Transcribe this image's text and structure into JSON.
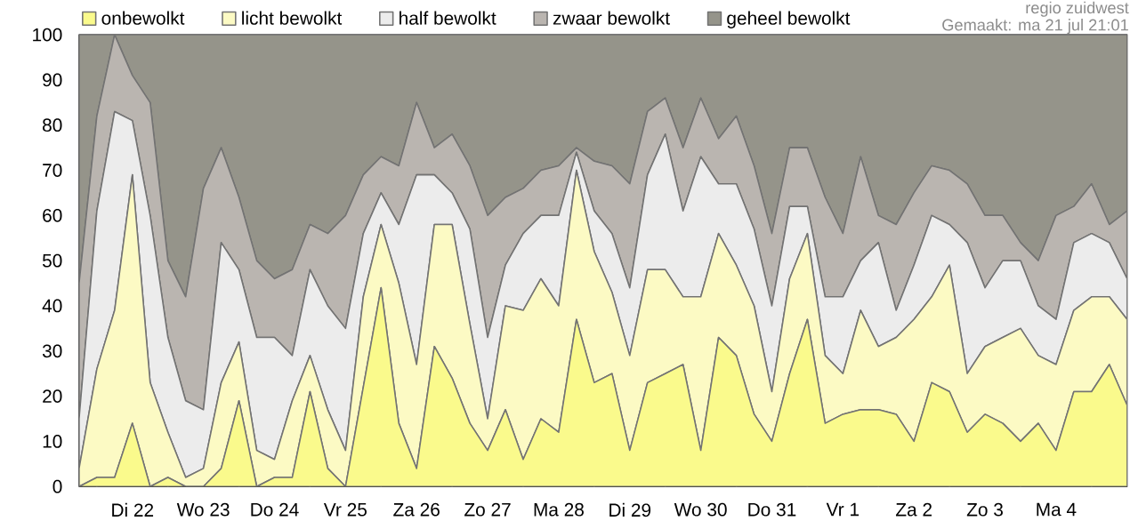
{
  "chart_data": {
    "type": "area",
    "stacked": true,
    "legend": "top",
    "grid": true,
    "annotations": [
      "regio zuidwest",
      "Gemaakt: ma 21 jul 21:01"
    ],
    "categories": [
      null,
      null,
      null,
      "Di 22",
      null,
      null,
      null,
      "Wo 23",
      null,
      null,
      null,
      "Do 24",
      null,
      null,
      null,
      "Vr 25",
      null,
      null,
      null,
      "Za 26",
      null,
      null,
      null,
      "Zo 27",
      null,
      null,
      null,
      "Ma 28",
      null,
      null,
      null,
      "Di 29",
      null,
      null,
      null,
      "Wo 30",
      null,
      null,
      null,
      "Do 31",
      null,
      null,
      null,
      "Vr 1",
      null,
      null,
      null,
      "Za 2",
      null,
      null,
      null,
      "Zo 3",
      null,
      null,
      null,
      "Ma 4",
      null,
      null,
      null,
      null
    ],
    "ylim": [
      0,
      100
    ],
    "yticks": [
      0,
      10,
      20,
      30,
      40,
      50,
      60,
      70,
      80,
      90,
      100
    ],
    "series": [
      {
        "name": "onbewolkt",
        "color": "#fafa8c",
        "values": [
          0,
          2,
          2,
          14,
          0,
          2,
          0,
          0,
          4,
          19,
          0,
          2,
          2,
          21,
          4,
          0,
          22,
          44,
          14,
          4,
          31,
          24,
          14,
          8,
          17,
          6,
          15,
          12,
          37,
          23,
          25,
          8,
          23,
          25,
          27,
          8,
          33,
          29,
          16,
          10,
          25,
          37,
          14,
          16,
          17,
          17,
          16,
          10,
          23,
          21,
          12,
          16,
          14,
          10,
          14,
          8,
          21,
          21,
          27,
          18
        ]
      },
      {
        "name": "licht bewolkt",
        "color": "#fcfac4",
        "values": [
          4,
          24,
          37,
          55,
          23,
          10,
          2,
          4,
          19,
          13,
          8,
          4,
          17,
          8,
          13,
          8,
          20,
          14,
          31,
          23,
          27,
          34,
          22,
          7,
          23,
          33,
          31,
          28,
          33,
          29,
          18,
          21,
          25,
          23,
          15,
          34,
          23,
          20,
          24,
          11,
          21,
          19,
          15,
          9,
          22,
          14,
          17,
          27,
          19,
          28,
          13,
          15,
          19,
          25,
          15,
          19,
          18,
          21,
          15,
          19
        ]
      },
      {
        "name": "half bewolkt",
        "color": "#ececec",
        "values": [
          11,
          35,
          44,
          12,
          37,
          21,
          17,
          13,
          31,
          16,
          25,
          27,
          10,
          19,
          23,
          27,
          14,
          7,
          13,
          42,
          11,
          7,
          21,
          18,
          9,
          17,
          14,
          20,
          4,
          9,
          13,
          15,
          21,
          30,
          19,
          31,
          11,
          18,
          17,
          19,
          16,
          6,
          13,
          17,
          11,
          23,
          6,
          12,
          18,
          9,
          29,
          13,
          17,
          15,
          11,
          10,
          15,
          14,
          12,
          9
        ]
      },
      {
        "name": "zwaar bewolkt",
        "color": "#bab5b0",
        "values": [
          30,
          21,
          17,
          10,
          25,
          17,
          23,
          49,
          21,
          16,
          17,
          13,
          19,
          10,
          16,
          25,
          13,
          8,
          13,
          16,
          6,
          13,
          14,
          27,
          15,
          10,
          10,
          11,
          1,
          11,
          15,
          23,
          14,
          8,
          14,
          13,
          10,
          15,
          14,
          16,
          13,
          13,
          22,
          14,
          23,
          6,
          19,
          16,
          11,
          12,
          13,
          16,
          10,
          4,
          10,
          23,
          8,
          11,
          4,
          15
        ]
      },
      {
        "name": "geheel bewolkt",
        "color": "#95948a",
        "values": [
          55,
          18,
          0,
          9,
          15,
          50,
          58,
          34,
          25,
          36,
          50,
          54,
          52,
          42,
          44,
          40,
          31,
          27,
          29,
          15,
          25,
          22,
          29,
          40,
          36,
          34,
          30,
          29,
          25,
          28,
          29,
          33,
          17,
          14,
          25,
          14,
          23,
          18,
          29,
          44,
          25,
          25,
          36,
          44,
          27,
          40,
          42,
          35,
          29,
          30,
          33,
          40,
          40,
          46,
          50,
          40,
          38,
          33,
          42,
          39
        ]
      }
    ]
  }
}
